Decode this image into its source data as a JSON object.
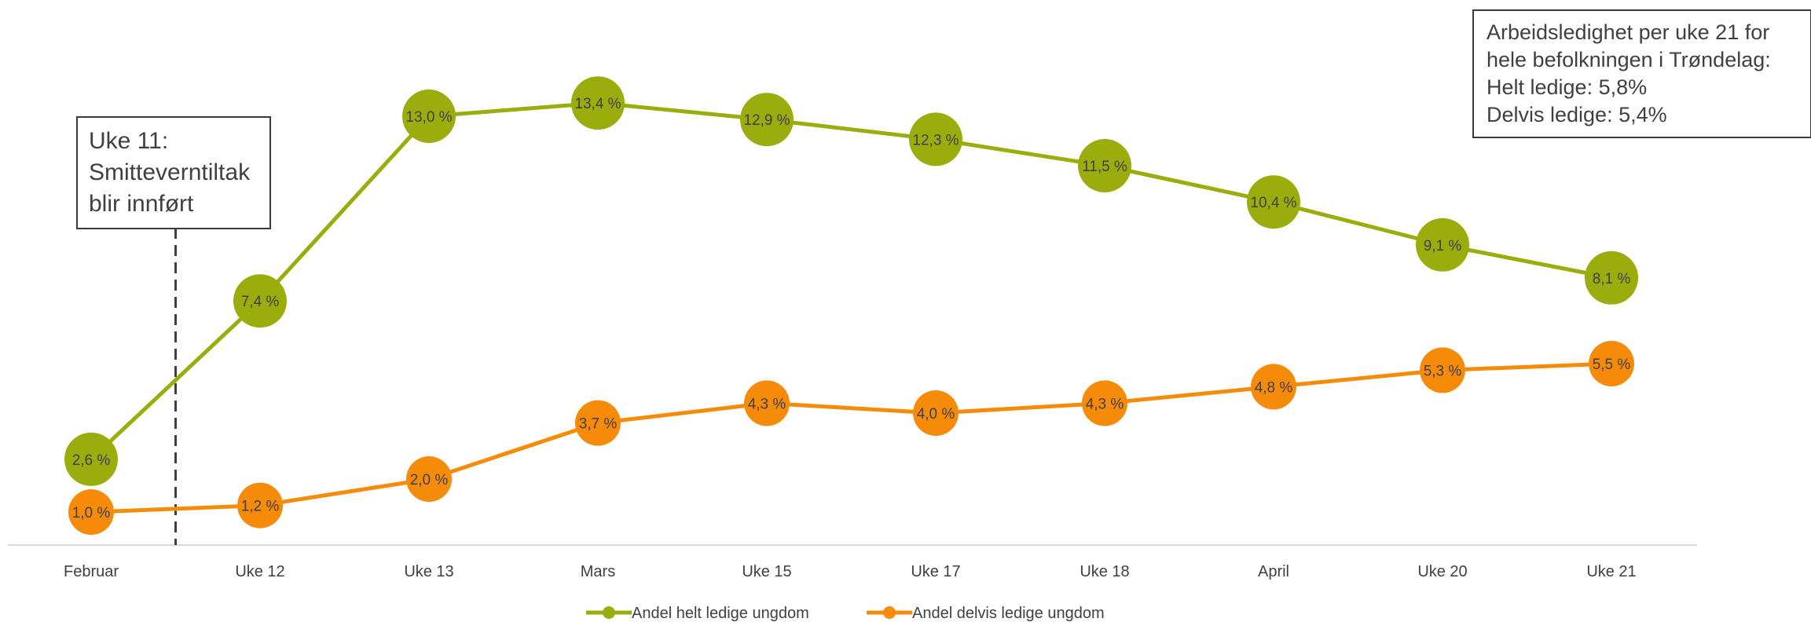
{
  "chart_data": {
    "type": "line",
    "categories": [
      "Februar",
      "Uke 12",
      "Uke 13",
      "Mars",
      "Uke 15",
      "Uke 17",
      "Uke 18",
      "April",
      "Uke 20",
      "Uke 21"
    ],
    "series": [
      {
        "name": "Andel helt ledige ungdom",
        "color": "#9aad0d",
        "values": [
          2.6,
          7.4,
          13.0,
          13.4,
          12.9,
          12.3,
          11.5,
          10.4,
          9.1,
          8.1
        ],
        "labels": [
          "2,6 %",
          "7,4 %",
          "13,0 %",
          "13,4 %",
          "12,9 %",
          "12,3 %",
          "11,5 %",
          "10,4 %",
          "9,1 %",
          "8,1 %"
        ]
      },
      {
        "name": "Andel delvis ledige ungdom",
        "color": "#f68b0a",
        "values": [
          1.0,
          1.2,
          2.0,
          3.7,
          4.3,
          4.0,
          4.3,
          4.8,
          5.3,
          5.5
        ],
        "labels": [
          "1,0 %",
          "1,2 %",
          "2,0 %",
          "3,7 %",
          "4,3 %",
          "4,0 %",
          "4,3 %",
          "4,8 %",
          "5,3 %",
          "5,5 %"
        ]
      }
    ],
    "ylim": [
      0,
      14.6
    ],
    "grid": false,
    "legend": "bottom-center",
    "annotations": {
      "event_line_category_index": 0.5,
      "left_box": [
        "Uke 11:",
        "Smitteverntiltak",
        "blir innført"
      ],
      "right_box": [
        "Arbeidsledighet per uke 21 for",
        "hele befolkningen i Trøndelag:",
        "Helt ledige: 5,8%",
        "Delvis ledige: 5,4%"
      ]
    }
  }
}
